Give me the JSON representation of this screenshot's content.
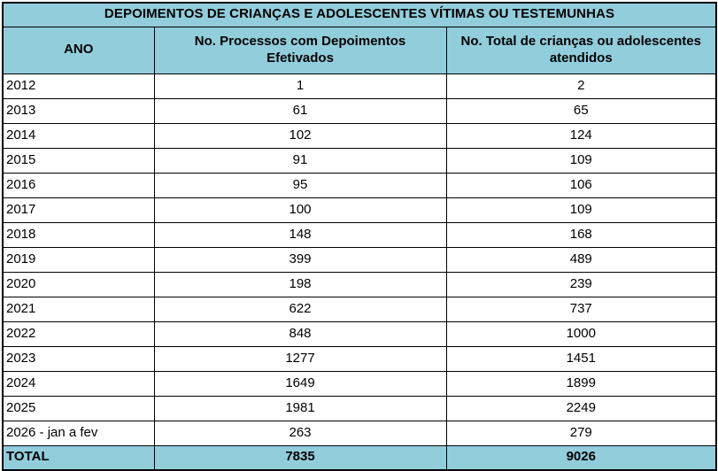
{
  "colors": {
    "header_bg": "#92CDDC",
    "border": "#000000",
    "page_bg": "#FFFFFF",
    "text": "#000000"
  },
  "table": {
    "title": "DEPOIMENTOS DE CRIANÇAS E ADOLESCENTES VÍTIMAS OU TESTEMUNHAS",
    "headers": {
      "ano": "ANO",
      "processos": "No. Processos com Depoimentos\nEfetivados",
      "atendidos": "No. Total de crianças ou adolescentes\natendidos"
    },
    "rows": [
      {
        "ano": "2012",
        "processos": "1",
        "atendidos": "2"
      },
      {
        "ano": "2013",
        "processos": "61",
        "atendidos": "65"
      },
      {
        "ano": "2014",
        "processos": "102",
        "atendidos": "124"
      },
      {
        "ano": "2015",
        "processos": "91",
        "atendidos": "109"
      },
      {
        "ano": "2016",
        "processos": "95",
        "atendidos": "106"
      },
      {
        "ano": "2017",
        "processos": "100",
        "atendidos": "109"
      },
      {
        "ano": "2018",
        "processos": "148",
        "atendidos": "168"
      },
      {
        "ano": "2019",
        "processos": "399",
        "atendidos": "489"
      },
      {
        "ano": "2020",
        "processos": "198",
        "atendidos": "239"
      },
      {
        "ano": "2021",
        "processos": "622",
        "atendidos": "737"
      },
      {
        "ano": "2022",
        "processos": "848",
        "atendidos": "1000"
      },
      {
        "ano": "2023",
        "processos": "1277",
        "atendidos": "1451"
      },
      {
        "ano": "2024",
        "processos": "1649",
        "atendidos": "1899"
      },
      {
        "ano": "2025",
        "processos": "1981",
        "atendidos": "2249"
      },
      {
        "ano": "2026 - jan a fev",
        "processos": "263",
        "atendidos": "279"
      }
    ],
    "total_row": {
      "label": "TOTAL",
      "processos": "7835",
      "atendidos": "9026"
    }
  },
  "chart_data": {
    "type": "table",
    "title": "DEPOIMENTOS DE CRIANÇAS E ADOLESCENTES VÍTIMAS OU TESTEMUNHAS",
    "columns": [
      "ANO",
      "No. Processos com Depoimentos Efetivados",
      "No. Total de crianças ou adolescentes atendidos"
    ],
    "rows": [
      [
        "2012",
        1,
        2
      ],
      [
        "2013",
        61,
        65
      ],
      [
        "2014",
        102,
        124
      ],
      [
        "2015",
        91,
        109
      ],
      [
        "2016",
        95,
        106
      ],
      [
        "2017",
        100,
        109
      ],
      [
        "2018",
        148,
        168
      ],
      [
        "2019",
        399,
        489
      ],
      [
        "2020",
        198,
        239
      ],
      [
        "2021",
        622,
        737
      ],
      [
        "2022",
        848,
        1000
      ],
      [
        "2023",
        1277,
        1451
      ],
      [
        "2024",
        1649,
        1899
      ],
      [
        "2025",
        1981,
        2249
      ],
      [
        "2026 - jan a fev",
        263,
        279
      ]
    ],
    "total": [
      "TOTAL",
      7835,
      9026
    ],
    "layout": {
      "header_fill": "#92CDDC",
      "grid": true,
      "title_position": "top-merged-cell"
    }
  }
}
